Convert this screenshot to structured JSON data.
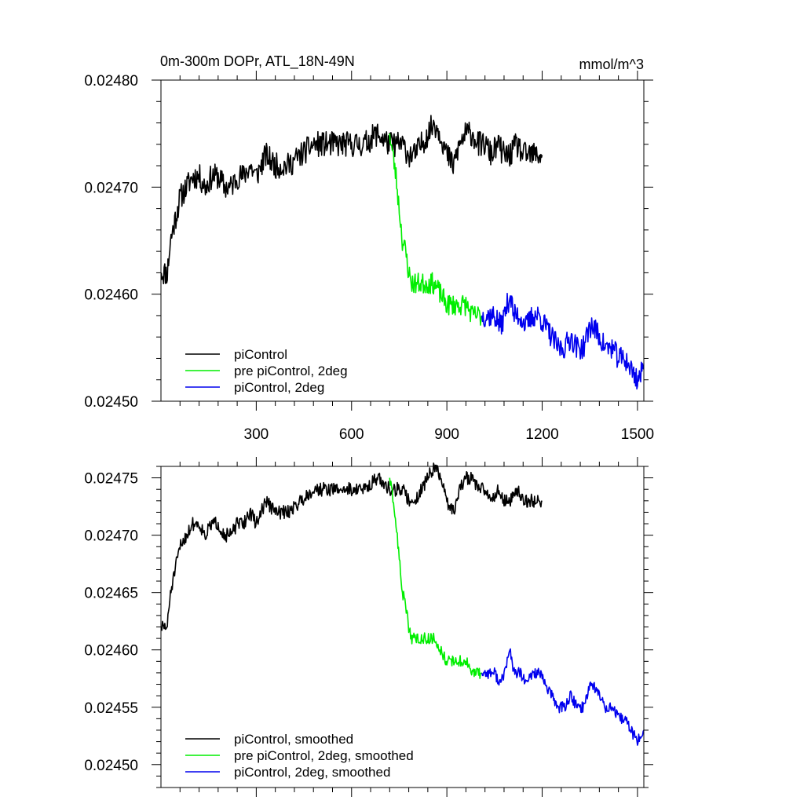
{
  "chart_data": [
    {
      "type": "line",
      "title": "0m-300m DOPr, ATL_18N-49N",
      "units": "mmol/m^3",
      "xlim": [
        0,
        1520
      ],
      "ylim": [
        0.0245,
        0.0248
      ],
      "xticks": [
        300,
        600,
        900,
        1200,
        1500
      ],
      "xtick_labels": [
        "300",
        "600",
        "900",
        "1200",
        "1500"
      ],
      "yticks": [
        0.0245,
        0.0246,
        0.0247,
        0.0248
      ],
      "ytick_labels": [
        "0.02450",
        "0.02460",
        "0.02470",
        "0.02480"
      ],
      "legend_position": "bottom-left",
      "series": [
        {
          "name": "piControl",
          "color": "#000000",
          "noise": 1.2e-05,
          "seed": 11,
          "x": [
            1,
            10,
            20,
            30,
            45,
            60,
            80,
            100,
            120,
            140,
            160,
            180,
            200,
            220,
            240,
            260,
            280,
            300,
            330,
            360,
            400,
            440,
            480,
            520,
            560,
            600,
            640,
            680,
            720,
            740,
            760,
            780,
            800,
            820,
            840,
            860,
            880,
            900,
            920,
            940,
            960,
            980,
            1000,
            1020,
            1040,
            1060,
            1080,
            1100,
            1120,
            1140,
            1160,
            1180,
            1200
          ],
          "y": [
            0.02462,
            0.02462,
            0.02462,
            0.02465,
            0.02467,
            0.02469,
            0.0247,
            0.02471,
            0.02471,
            0.0247,
            0.02471,
            0.02471,
            0.0247,
            0.0247,
            0.02471,
            0.02471,
            0.02472,
            0.02471,
            0.02473,
            0.02472,
            0.02472,
            0.02473,
            0.02474,
            0.02474,
            0.02474,
            0.02474,
            0.02474,
            0.02475,
            0.02474,
            0.02474,
            0.02474,
            0.02473,
            0.02473,
            0.02474,
            0.02475,
            0.02476,
            0.02475,
            0.02473,
            0.02472,
            0.02474,
            0.02475,
            0.02475,
            0.02474,
            0.02474,
            0.02473,
            0.02474,
            0.02473,
            0.02473,
            0.02474,
            0.02473,
            0.02473,
            0.02473,
            0.02473
          ]
        },
        {
          "name": "pre piControl, 2deg",
          "color": "#00ee00",
          "noise": 1e-05,
          "seed": 23,
          "x": [
            720,
            730,
            740,
            750,
            760,
            770,
            780,
            790,
            800,
            820,
            840,
            860,
            880,
            900,
            920,
            940,
            960,
            980,
            1000,
            1010
          ],
          "y": [
            0.02475,
            0.02473,
            0.02471,
            0.02468,
            0.02465,
            0.02464,
            0.02462,
            0.02461,
            0.02461,
            0.02461,
            0.02461,
            0.02461,
            0.0246,
            0.02459,
            0.02459,
            0.02459,
            0.02459,
            0.02458,
            0.02458,
            0.02458
          ]
        },
        {
          "name": "piControl, 2deg",
          "color": "#0000ee",
          "noise": 1.1e-05,
          "seed": 37,
          "x": [
            1010,
            1030,
            1050,
            1070,
            1090,
            1100,
            1110,
            1130,
            1150,
            1170,
            1190,
            1210,
            1230,
            1250,
            1270,
            1290,
            1310,
            1330,
            1350,
            1360,
            1380,
            1400,
            1420,
            1440,
            1460,
            1480,
            1500,
            1520
          ],
          "y": [
            0.02458,
            0.02458,
            0.02458,
            0.02457,
            0.02459,
            0.0246,
            0.02458,
            0.02458,
            0.02457,
            0.02458,
            0.02458,
            0.02457,
            0.02456,
            0.02455,
            0.02455,
            0.02456,
            0.02455,
            0.02455,
            0.02457,
            0.02457,
            0.02456,
            0.02455,
            0.02455,
            0.02454,
            0.02454,
            0.02453,
            0.02452,
            0.02453
          ]
        }
      ]
    },
    {
      "type": "line",
      "title": "",
      "xlim": [
        0,
        1520
      ],
      "ylim": [
        0.02448,
        0.02476
      ],
      "xticks": [
        300,
        600,
        900,
        1200,
        1500
      ],
      "xtick_labels": [],
      "yticks": [
        0.0245,
        0.02455,
        0.0246,
        0.02465,
        0.0247,
        0.02475
      ],
      "ytick_labels": [
        "0.02450",
        "0.02455",
        "0.02460",
        "0.02465",
        "0.02470",
        "0.02475"
      ],
      "legend_position": "bottom-left",
      "series": [
        {
          "name": "piControl, smoothed",
          "color": "#000000",
          "noise": 6e-06,
          "seed": 51,
          "x": [
            1,
            10,
            20,
            30,
            45,
            60,
            80,
            100,
            120,
            140,
            160,
            180,
            200,
            220,
            240,
            260,
            280,
            300,
            330,
            360,
            400,
            440,
            480,
            520,
            560,
            600,
            640,
            680,
            720,
            740,
            760,
            780,
            800,
            820,
            840,
            860,
            880,
            900,
            920,
            940,
            960,
            980,
            1000,
            1020,
            1040,
            1060,
            1080,
            1100,
            1120,
            1140,
            1160,
            1180,
            1200
          ],
          "y": [
            0.02462,
            0.02462,
            0.02462,
            0.02465,
            0.02467,
            0.02469,
            0.0247,
            0.02471,
            0.02471,
            0.0247,
            0.02471,
            0.02471,
            0.0247,
            0.0247,
            0.02471,
            0.02471,
            0.02472,
            0.02471,
            0.02473,
            0.02472,
            0.02472,
            0.02473,
            0.02474,
            0.02474,
            0.02474,
            0.02474,
            0.02474,
            0.02475,
            0.02474,
            0.02474,
            0.02474,
            0.02473,
            0.02473,
            0.02474,
            0.02475,
            0.02476,
            0.02475,
            0.02473,
            0.02472,
            0.02474,
            0.02475,
            0.02475,
            0.02474,
            0.02474,
            0.02473,
            0.02474,
            0.02473,
            0.02473,
            0.02474,
            0.02473,
            0.02473,
            0.02473,
            0.02473
          ]
        },
        {
          "name": "pre piControl, 2deg, smoothed",
          "color": "#00ee00",
          "noise": 5e-06,
          "seed": 63,
          "x": [
            720,
            730,
            740,
            750,
            760,
            770,
            780,
            790,
            800,
            820,
            840,
            860,
            880,
            900,
            920,
            940,
            960,
            980,
            1000,
            1010
          ],
          "y": [
            0.02475,
            0.02473,
            0.02471,
            0.02468,
            0.02465,
            0.02464,
            0.02462,
            0.02461,
            0.02461,
            0.02461,
            0.02461,
            0.02461,
            0.0246,
            0.02459,
            0.02459,
            0.02459,
            0.02459,
            0.02458,
            0.02458,
            0.02458
          ]
        },
        {
          "name": "piControl, 2deg, smoothed",
          "color": "#0000ee",
          "noise": 5e-06,
          "seed": 77,
          "x": [
            1010,
            1030,
            1050,
            1070,
            1090,
            1100,
            1110,
            1130,
            1150,
            1170,
            1190,
            1210,
            1230,
            1250,
            1270,
            1290,
            1310,
            1330,
            1350,
            1360,
            1380,
            1400,
            1420,
            1440,
            1460,
            1480,
            1500,
            1520
          ],
          "y": [
            0.02458,
            0.02458,
            0.02458,
            0.02457,
            0.02459,
            0.0246,
            0.02458,
            0.02458,
            0.02457,
            0.02458,
            0.02458,
            0.02457,
            0.02456,
            0.02455,
            0.02455,
            0.02456,
            0.02455,
            0.02455,
            0.02457,
            0.02457,
            0.02456,
            0.02455,
            0.02455,
            0.02454,
            0.02454,
            0.02453,
            0.02452,
            0.02453
          ]
        }
      ]
    }
  ]
}
